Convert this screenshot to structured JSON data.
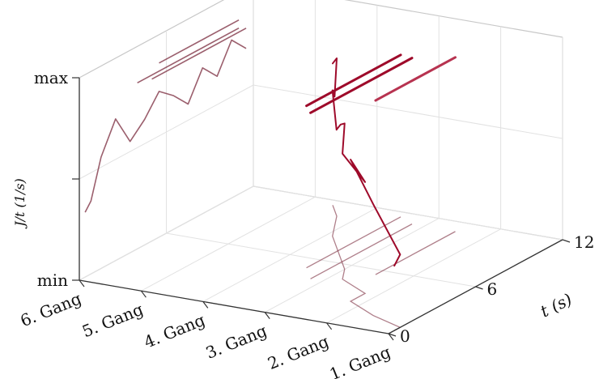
{
  "chart_data": {
    "type": "line",
    "projection": "3d",
    "x_axis": {
      "categories": [
        "1. Gang",
        "2. Gang",
        "3. Gang",
        "4. Gang",
        "5. Gang",
        "6. Gang"
      ]
    },
    "y_axis": {
      "label": "t (s)",
      "ticks": [
        "0",
        "6",
        "12"
      ],
      "range": [
        0,
        12
      ]
    },
    "z_axis": {
      "label": "J/t (1/s)",
      "ticks": [
        "min",
        "max"
      ],
      "range": [
        "min",
        "max"
      ]
    },
    "grid": true,
    "series": [
      {
        "color": "#9e0a2a",
        "points": [
          {
            "gear": 1,
            "t": 0.4,
            "v": 0.32
          },
          {
            "gear": 1,
            "t": 0.8,
            "v": 0.36
          },
          {
            "gear": 1.6,
            "t": 1.5,
            "v": 0.55
          },
          {
            "gear": 2.2,
            "t": 2.5,
            "v": 0.7
          },
          {
            "gear": 2.2,
            "t": 3.5,
            "v": 0.55
          },
          {
            "gear": 2.8,
            "t": 4.5,
            "v": 0.62
          },
          {
            "gear": 3.0,
            "t": 5.5,
            "v": 0.72
          },
          {
            "gear": 3.3,
            "t": 6.5,
            "v": 0.66
          },
          {
            "gear": 3.6,
            "t": 7.5,
            "v": 0.58
          },
          {
            "gear": 3.9,
            "t": 8.5,
            "v": 0.72
          },
          {
            "gear": 4.1,
            "t": 9.5,
            "v": 0.64
          },
          {
            "gear": 4.3,
            "t": 10.5,
            "v": 0.78
          },
          {
            "gear": 4.6,
            "t": 11.5,
            "v": 0.7
          }
        ]
      },
      {
        "color": "#9e0a2a",
        "points": [
          {
            "gear": 3.5,
            "t": 5.0,
            "v": 0.8
          },
          {
            "gear": 3.5,
            "t": 11.5,
            "v": 0.8
          }
        ]
      },
      {
        "color": "#9e0a2a",
        "points": [
          {
            "gear": 3.2,
            "t": 4.0,
            "v": 0.82
          },
          {
            "gear": 3.2,
            "t": 11.0,
            "v": 0.82
          }
        ]
      },
      {
        "color": "#b73350",
        "points": [
          {
            "gear": 2.5,
            "t": 5.5,
            "v": 0.86
          },
          {
            "gear": 2.5,
            "t": 11.0,
            "v": 0.86
          }
        ]
      }
    ]
  }
}
